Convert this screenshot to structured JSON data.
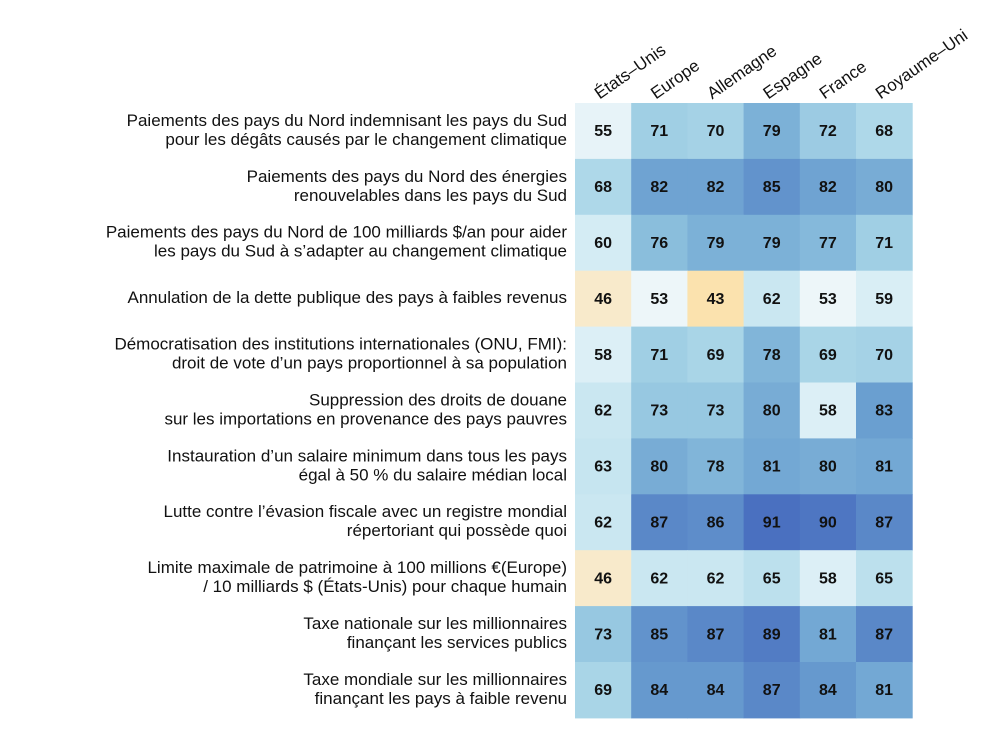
{
  "chart_data": {
    "type": "heatmap",
    "x": [
      "États–Unis",
      "Europe",
      "Allemagne",
      "Espagne",
      "France",
      "Royaume–Uni"
    ],
    "y": [
      [
        "Paiements des pays du Nord indemnisant les pays du Sud",
        "pour les dégâts causés par le changement climatique"
      ],
      [
        "Paiements des pays du Nord des énergies",
        "renouvelables dans les pays du Sud"
      ],
      [
        "Paiements des pays du Nord de 100 milliards $/an pour aider",
        "les pays du Sud à s’adapter au changement climatique"
      ],
      [
        "Annulation de la dette publique des pays à faibles revenus"
      ],
      [
        "Démocratisation des institutions internationales (ONU, FMI):",
        "droit de vote d’un pays proportionnel à sa population"
      ],
      [
        "Suppression des droits de douane",
        "sur les importations en provenance des pays pauvres"
      ],
      [
        "Instauration d’un salaire minimum dans tous les pays",
        "égal à 50 % du salaire médian local"
      ],
      [
        "Lutte contre l’évasion fiscale avec un registre mondial",
        "répertoriant qui possède quoi"
      ],
      [
        "Limite maximale de patrimoine à 100 millions €(Europe)",
        "/ 10 milliards $ (États-Unis) pour chaque humain"
      ],
      [
        "Taxe nationale sur les millionnaires",
        "finançant les services publics"
      ],
      [
        "Taxe mondiale sur les millionnaires",
        "finançant les pays à faible revenu"
      ]
    ],
    "values": [
      [
        55,
        71,
        70,
        79,
        72,
        68
      ],
      [
        68,
        82,
        82,
        85,
        82,
        80
      ],
      [
        60,
        76,
        79,
        79,
        77,
        71
      ],
      [
        46,
        53,
        43,
        62,
        53,
        59
      ],
      [
        58,
        71,
        69,
        78,
        69,
        70
      ],
      [
        62,
        73,
        73,
        80,
        58,
        83
      ],
      [
        63,
        80,
        78,
        81,
        80,
        81
      ],
      [
        62,
        87,
        86,
        91,
        90,
        87
      ],
      [
        46,
        62,
        62,
        65,
        58,
        65
      ],
      [
        73,
        85,
        87,
        89,
        81,
        87
      ],
      [
        69,
        84,
        84,
        87,
        84,
        81
      ]
    ],
    "colors": [
      "#fbe2ae",
      "#f4f8fa",
      "#d9eef5",
      "#b2dbea",
      "#8ec2de",
      "#6a9fd0",
      "#4a70c0"
    ]
  }
}
